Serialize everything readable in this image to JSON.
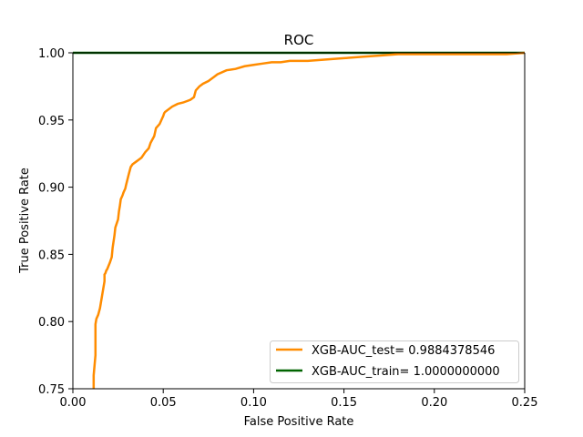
{
  "chart_data": {
    "type": "line",
    "title": "ROC",
    "xlabel": "False Positive Rate",
    "ylabel": "True Positive Rate",
    "xlim": [
      0.0,
      0.25
    ],
    "ylim": [
      0.75,
      1.0
    ],
    "xticks": [
      "0.00",
      "0.05",
      "0.10",
      "0.15",
      "0.20",
      "0.25"
    ],
    "yticks": [
      "0.75",
      "0.80",
      "0.85",
      "0.90",
      "0.95",
      "1.00"
    ],
    "grid": false,
    "legend_position": "lower-right",
    "series": [
      {
        "name": "XGB-AUC_test= 0.9884378546",
        "color": "#ff8c00",
        "x": [
          0.0115,
          0.0115,
          0.0125,
          0.0125,
          0.013,
          0.014,
          0.015,
          0.016,
          0.0175,
          0.0175,
          0.018,
          0.0185,
          0.019,
          0.0205,
          0.0215,
          0.022,
          0.023,
          0.0235,
          0.024,
          0.025,
          0.0255,
          0.026,
          0.0265,
          0.0275,
          0.028,
          0.029,
          0.0295,
          0.031,
          0.032,
          0.033,
          0.035,
          0.036,
          0.038,
          0.04,
          0.042,
          0.043,
          0.045,
          0.046,
          0.048,
          0.049,
          0.05,
          0.0505,
          0.051,
          0.052,
          0.055,
          0.058,
          0.061,
          0.065,
          0.067,
          0.068,
          0.07,
          0.072,
          0.075,
          0.078,
          0.08,
          0.085,
          0.09,
          0.095,
          0.1,
          0.105,
          0.11,
          0.115,
          0.12,
          0.13,
          0.14,
          0.15,
          0.16,
          0.17,
          0.18,
          0.2,
          0.22,
          0.24,
          0.25
        ],
        "y": [
          0.75,
          0.76,
          0.775,
          0.798,
          0.802,
          0.805,
          0.81,
          0.818,
          0.83,
          0.835,
          0.836,
          0.838,
          0.839,
          0.844,
          0.848,
          0.855,
          0.864,
          0.87,
          0.872,
          0.876,
          0.882,
          0.886,
          0.891,
          0.894,
          0.896,
          0.899,
          0.902,
          0.91,
          0.915,
          0.917,
          0.919,
          0.92,
          0.922,
          0.926,
          0.929,
          0.933,
          0.938,
          0.944,
          0.947,
          0.95,
          0.953,
          0.955,
          0.956,
          0.957,
          0.96,
          0.962,
          0.963,
          0.965,
          0.967,
          0.972,
          0.975,
          0.977,
          0.979,
          0.982,
          0.984,
          0.987,
          0.988,
          0.99,
          0.991,
          0.992,
          0.993,
          0.993,
          0.994,
          0.994,
          0.995,
          0.996,
          0.997,
          0.998,
          0.999,
          0.999,
          0.999,
          0.999,
          1.0
        ]
      },
      {
        "name": "XGB-AUC_train= 1.0000000000",
        "color": "#006400",
        "x": [
          0.0,
          0.25
        ],
        "y": [
          1.0,
          1.0
        ]
      }
    ]
  }
}
